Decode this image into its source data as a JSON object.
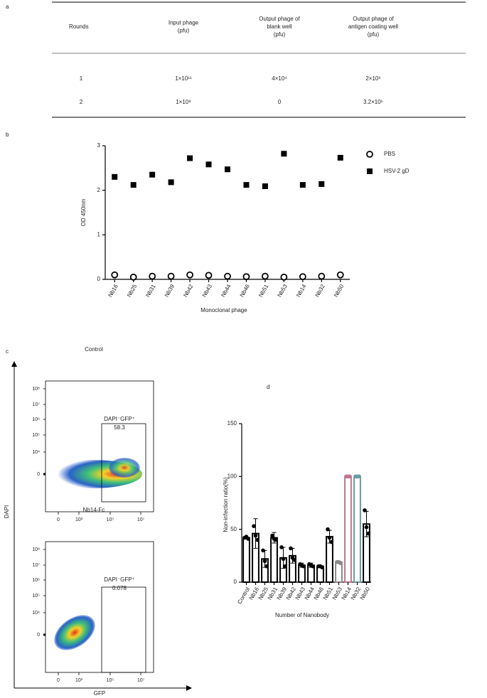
{
  "panel_labels": [
    "a",
    "b",
    "c",
    "d"
  ],
  "table": {
    "header": [
      [
        "Rounds"
      ],
      [
        "Input phage",
        "(pfu)"
      ],
      [
        "Output phage of",
        "blank well",
        "(pfu)"
      ],
      [
        "Output phage of",
        "antigen coating well",
        "(pfu)"
      ]
    ],
    "rows": [
      [
        "1",
        "1×10¹¹",
        "4×10⁴",
        "2×10⁶"
      ],
      [
        "2",
        "1×10⁸",
        "0",
        "3.2×10⁵"
      ]
    ]
  },
  "chart_data": [
    {
      "type": "scatter",
      "ylabel": "OD 450nm",
      "xlabel": "Monoclonal phage",
      "categories": [
        "Nb16",
        "Nb25",
        "Nb31",
        "Nb39",
        "Nb42",
        "Nb43",
        "Nb44",
        "Nb46",
        "Nb51",
        "Nb53",
        "Nb14",
        "Nb32",
        "Nb50"
      ],
      "series": [
        {
          "name": "PBS",
          "color": "#000000",
          "marker": "open-circle",
          "values": [
            0.1,
            0.05,
            0.07,
            0.07,
            0.1,
            0.09,
            0.07,
            0.06,
            0.07,
            0.05,
            0.06,
            0.07,
            0.1
          ]
        },
        {
          "name": "HSV-2 gD",
          "color": "#000000",
          "marker": "square",
          "values": [
            2.3,
            2.12,
            2.35,
            2.18,
            2.72,
            2.58,
            2.47,
            2.12,
            2.09,
            2.82,
            2.12,
            2.14,
            2.73
          ]
        }
      ],
      "ylim": [
        0,
        3
      ],
      "yticks": [
        0,
        1,
        2,
        3
      ]
    },
    {
      "type": "bar",
      "ylabel": "Non-infection ratio(%)",
      "xlabel": "Number of Nanobody",
      "categories": [
        "Control",
        "Nb16",
        "Nb25",
        "Nb31",
        "Nb39",
        "Nb42",
        "Nb43",
        "Nb44",
        "Nb46",
        "Nb51",
        "Nb53",
        "Nb14",
        "Nb32",
        "Nb50"
      ],
      "values": [
        42,
        46,
        22,
        42,
        23,
        25,
        16,
        16,
        15,
        43,
        19,
        100,
        100,
        55
      ],
      "errors": [
        1,
        14,
        8,
        5,
        10,
        7,
        2,
        2,
        1,
        6,
        1,
        0,
        0,
        12
      ],
      "points": [
        [
          42,
          43,
          41
        ],
        [
          53,
          44,
          40
        ],
        [
          30,
          20,
          15
        ],
        [
          44,
          41,
          40
        ],
        [
          33,
          22,
          15
        ],
        [
          32,
          23,
          21
        ],
        [
          17,
          16,
          15
        ],
        [
          17,
          16,
          15
        ],
        [
          15,
          15,
          14
        ],
        [
          50,
          42,
          38
        ],
        [
          19,
          19,
          18
        ],
        [
          100,
          100,
          100
        ],
        [
          100,
          100,
          100
        ],
        [
          68,
          52,
          46
        ]
      ],
      "colors": [
        "#000000",
        "#000000",
        "#000000",
        "#000000",
        "#000000",
        "#000000",
        "#000000",
        "#000000",
        "#000000",
        "#000000",
        "#888888",
        "#c0768d",
        "#6a9aa8",
        "#000000"
      ],
      "ylim": [
        0,
        150
      ],
      "yticks": [
        0,
        50,
        100,
        150
      ]
    }
  ],
  "flow": {
    "ylabel": "DAPI",
    "xlabel": "GFP",
    "yticks": [
      "10⁸",
      "10⁷",
      "10⁶",
      "10⁵",
      "10⁴",
      "0"
    ],
    "xticks": [
      "0",
      "10³",
      "10⁵",
      "10⁷"
    ],
    "panels": [
      {
        "title": "Control",
        "gate_label": "DAPI⁻GFP⁺",
        "gate_value": "58.3"
      },
      {
        "title": "Nb14-Fc",
        "gate_label": "DAPI⁻GFP⁺",
        "gate_value": "0.078"
      }
    ]
  }
}
